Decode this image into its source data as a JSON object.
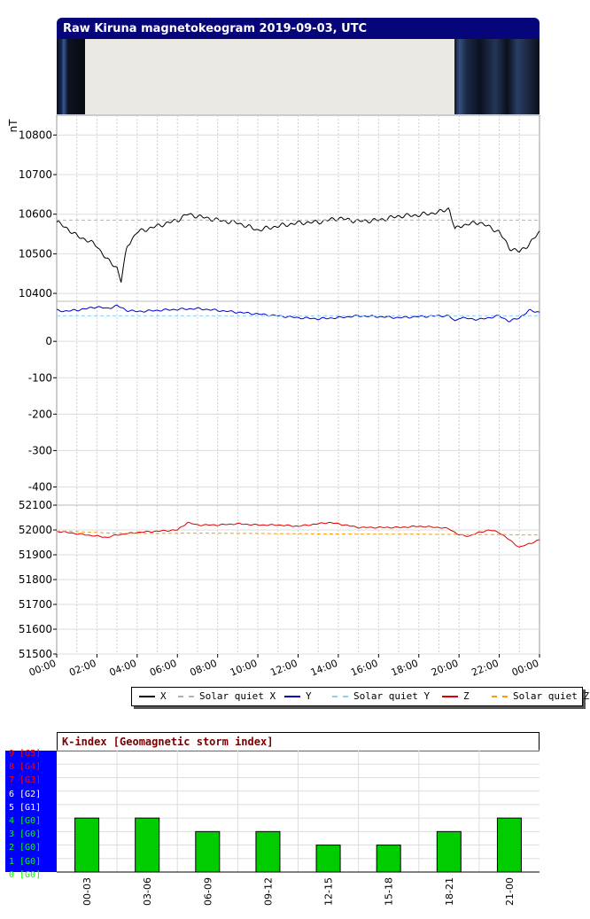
{
  "title": "Raw Kiruna magnetokeogram 2019-09-03, UTC",
  "unit_label": "nT",
  "x_ticks": [
    "00:00",
    "02:00",
    "04:00",
    "06:00",
    "08:00",
    "10:00",
    "12:00",
    "14:00",
    "16:00",
    "18:00",
    "20:00",
    "22:00",
    "00:00"
  ],
  "legend": [
    {
      "label": "X",
      "color": "#000000",
      "style": "solid"
    },
    {
      "label": "Solar quiet X",
      "color": "#b0b0b0",
      "style": "dashed"
    },
    {
      "label": "Y",
      "color": "#0000cc",
      "style": "solid"
    },
    {
      "label": "Solar quiet Y",
      "color": "#87cefa",
      "style": "dashed"
    },
    {
      "label": "Z",
      "color": "#dd0000",
      "style": "solid"
    },
    {
      "label": "Solar quiet Z",
      "color": "#ff9900",
      "style": "dashed"
    }
  ],
  "chart_data": [
    {
      "type": "line",
      "panel": "X",
      "ylim": [
        10380,
        10850
      ],
      "y_ticks": [
        10400,
        10500,
        10600,
        10700,
        10800
      ],
      "x": [
        0,
        0.5,
        1,
        1.5,
        2,
        2.5,
        3,
        3.2,
        3.5,
        4,
        5,
        6,
        6.5,
        7,
        7.5,
        8,
        9,
        10,
        11,
        12,
        13,
        14,
        15,
        16,
        17,
        18,
        19,
        19.5,
        19.8,
        20,
        21,
        22,
        22.5,
        23,
        23.5,
        24
      ],
      "series": [
        {
          "name": "X",
          "color": "#000000",
          "values": [
            10580,
            10565,
            10545,
            10535,
            10520,
            10485,
            10465,
            10430,
            10520,
            10555,
            10570,
            10585,
            10600,
            10595,
            10590,
            10585,
            10578,
            10560,
            10570,
            10578,
            10580,
            10590,
            10582,
            10585,
            10595,
            10598,
            10605,
            10615,
            10560,
            10570,
            10580,
            10555,
            10515,
            10505,
            10525,
            10555
          ]
        },
        {
          "name": "Solar quiet X",
          "color": "#b0b0b0",
          "dashed": true,
          "values": [
            10585,
            10585,
            10585,
            10585,
            10585,
            10585,
            10585,
            10585,
            10585,
            10585,
            10585,
            10585,
            10585,
            10585,
            10585,
            10585,
            10585,
            10585,
            10585,
            10585,
            10585,
            10585,
            10585,
            10585,
            10585,
            10585,
            10585,
            10585,
            10585,
            10585,
            10585,
            10585,
            10585,
            10585,
            10585,
            10585
          ]
        }
      ]
    },
    {
      "type": "line",
      "panel": "Y",
      "ylim": [
        -450,
        110
      ],
      "y_ticks": [
        -400,
        -300,
        -200,
        -100,
        0
      ],
      "x": [
        0,
        0.5,
        1,
        1.5,
        2,
        2.5,
        3,
        3.5,
        4,
        5,
        6,
        7,
        8,
        9,
        10,
        11,
        12,
        13,
        14,
        15,
        16,
        17,
        18,
        19,
        19.5,
        19.8,
        20,
        21,
        22,
        22.5,
        23,
        23.5,
        24
      ],
      "series": [
        {
          "name": "Y",
          "color": "#0000cc",
          "values": [
            85,
            83,
            86,
            90,
            95,
            90,
            98,
            85,
            82,
            85,
            88,
            90,
            85,
            80,
            75,
            70,
            65,
            62,
            65,
            70,
            68,
            65,
            68,
            70,
            70,
            55,
            65,
            60,
            70,
            55,
            65,
            85,
            80
          ]
        },
        {
          "name": "Solar quiet Y",
          "color": "#87cefa",
          "dashed": true,
          "values": [
            70,
            70,
            70,
            70,
            70,
            70,
            70,
            70,
            70,
            70,
            70,
            70,
            70,
            70,
            70,
            70,
            70,
            70,
            70,
            70,
            70,
            70,
            70,
            70,
            70,
            70,
            70,
            70,
            70,
            70,
            70,
            70,
            70
          ]
        }
      ]
    },
    {
      "type": "line",
      "panel": "Z",
      "ylim": [
        51500,
        52100
      ],
      "y_ticks": [
        51500,
        51600,
        51700,
        51800,
        51900,
        52000,
        52100
      ],
      "x": [
        0,
        0.5,
        1,
        1.5,
        2,
        2.5,
        3,
        3.5,
        4,
        5,
        6,
        6.5,
        7,
        8,
        9,
        10,
        11,
        12,
        13,
        13.5,
        14,
        15,
        16,
        17,
        18,
        19,
        19.5,
        20,
        20.5,
        21,
        21.5,
        22,
        22.5,
        23,
        23.5,
        24
      ],
      "series": [
        {
          "name": "Z",
          "color": "#dd0000",
          "values": [
            51995,
            51990,
            51985,
            51980,
            51975,
            51970,
            51980,
            51985,
            51990,
            51995,
            52000,
            52030,
            52020,
            52020,
            52025,
            52020,
            52020,
            52015,
            52025,
            52030,
            52025,
            52010,
            52010,
            52010,
            52015,
            52010,
            52005,
            51980,
            51975,
            51990,
            52000,
            51990,
            51960,
            51930,
            51945,
            51960
          ]
        },
        {
          "name": "Solar quiet Z",
          "color": "#ff9900",
          "dashed": true,
          "values": [
            51995,
            51995,
            51993,
            51991,
            51990,
            51988,
            51987,
            51986,
            51986,
            51986,
            51987,
            51987,
            51987,
            51987,
            51986,
            51986,
            51985,
            51985,
            51984,
            51984,
            51984,
            51983,
            51983,
            51983,
            51983,
            51982,
            51982,
            51982,
            51981,
            51981,
            51981,
            51981,
            51981,
            51980,
            51980,
            51980
          ]
        }
      ]
    },
    {
      "type": "bar",
      "title": "K-index [Geomagnetic storm index]",
      "categories": [
        "00-03",
        "03-06",
        "06-09",
        "09-12",
        "12-15",
        "15-18",
        "18-21",
        "21-00"
      ],
      "values": [
        4,
        4,
        3,
        3,
        2,
        2,
        3,
        4
      ],
      "ylim": [
        0,
        9
      ],
      "bar_color": "#00cc00"
    }
  ],
  "k_scale": [
    {
      "label": "9 [G5]",
      "color": "#ff0000"
    },
    {
      "label": "8 [G4]",
      "color": "#ff0000"
    },
    {
      "label": "7 [G3]",
      "color": "#ff0000"
    },
    {
      "label": "6 [G2]",
      "color": "#ffffff"
    },
    {
      "label": "5 [G1]",
      "color": "#ffffff"
    },
    {
      "label": "4 [G0]",
      "color": "#00ff00"
    },
    {
      "label": "3 [G0]",
      "color": "#00ff00"
    },
    {
      "label": "2 [G0]",
      "color": "#00ff00"
    },
    {
      "label": "1 [G0]",
      "color": "#00ff00"
    },
    {
      "label": "0 [G0]",
      "color": "#00ff00"
    }
  ]
}
